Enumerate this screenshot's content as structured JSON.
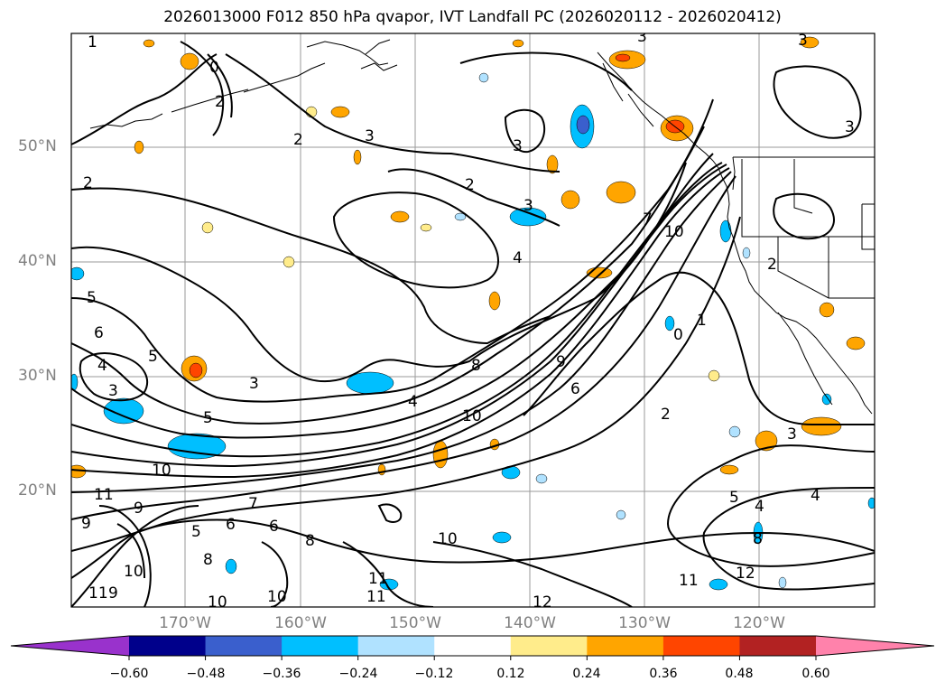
{
  "title": "2026013000 F012 850 hPa qvapor, IVT Landfall PC (2026020112 - 2026020412)",
  "lat_labels": [
    "50°N",
    "40°N",
    "30°N",
    "20°N"
  ],
  "lon_labels": [
    "170°W",
    "160°W",
    "150°W",
    "140°W",
    "130°W",
    "120°W"
  ],
  "contour_labels": [
    "1",
    "0",
    "2",
    "2",
    "3",
    "3",
    "3",
    "2",
    "3",
    "4",
    "5",
    "6",
    "4",
    "3",
    "5",
    "3",
    "5",
    "9",
    "10",
    "11",
    "9",
    "5",
    "6",
    "7",
    "6",
    "8",
    "8",
    "10",
    "11",
    "10",
    "10",
    "10",
    "10",
    "11",
    "11",
    "12",
    "8",
    "10",
    "9",
    "7",
    "2",
    "6",
    "1",
    "0",
    "2",
    "3",
    "5",
    "4",
    "4",
    "11",
    "12",
    "3",
    "3",
    "2",
    "9",
    "4",
    "8"
  ],
  "colorbar": {
    "ticks": [
      "−0.60",
      "−0.48",
      "−0.36",
      "−0.24",
      "−0.12",
      "0.12",
      "0.24",
      "0.36",
      "0.48",
      "0.60"
    ],
    "colors": [
      "#9932cc",
      "#00008b",
      "#3a5fcd",
      "#00bfff",
      "#b0e2ff",
      "#ffffff",
      "#ffec8b",
      "#ffa500",
      "#ff4500",
      "#b22222",
      "#ff82ab"
    ]
  }
}
